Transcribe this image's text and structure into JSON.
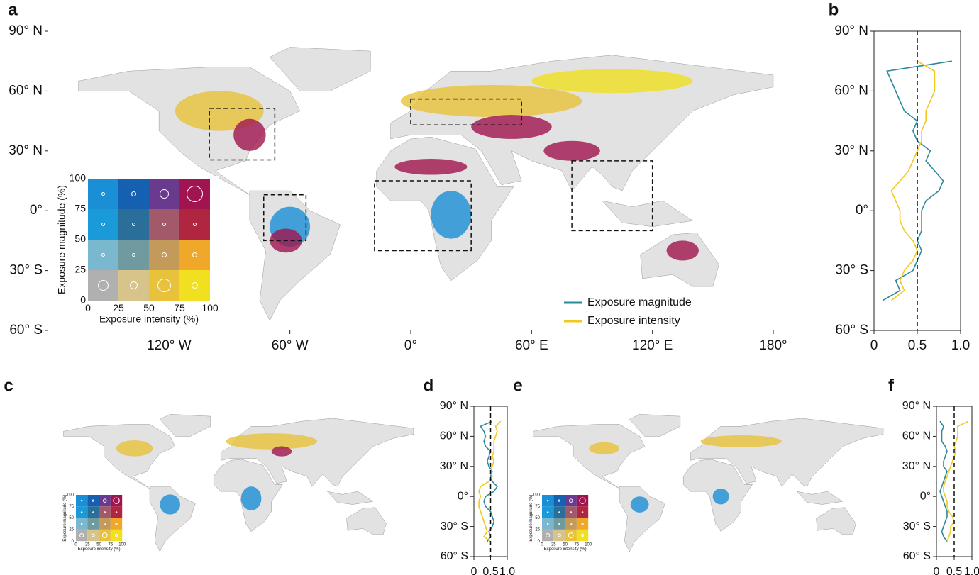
{
  "chart_data": [
    {
      "type": "map",
      "panel": "a",
      "xlim": [
        -180,
        180
      ],
      "ylim": [
        -60,
        90
      ],
      "xticks": [
        {
          "value": -120,
          "label": "120° W"
        },
        {
          "value": -60,
          "label": "60° W"
        },
        {
          "value": 0,
          "label": "0°"
        },
        {
          "value": 60,
          "label": "60° E"
        },
        {
          "value": 120,
          "label": "120° E"
        },
        {
          "value": 180,
          "label": "180°"
        }
      ],
      "yticks": [
        {
          "value": 90,
          "label": "90° N"
        },
        {
          "value": 60,
          "label": "60° N"
        },
        {
          "value": 30,
          "label": "30° N"
        },
        {
          "value": 0,
          "label": "0°"
        },
        {
          "value": -30,
          "label": "30° S"
        },
        {
          "value": -60,
          "label": "60° S"
        }
      ],
      "legend": {
        "x_label": "Exposure intensity (%)",
        "y_label": "Exposure magnitude (%)",
        "ticks": [
          0,
          25,
          50,
          75,
          100
        ],
        "colors": [
          [
            "#1a8fd6",
            "#1560b0",
            "#6a3a8e",
            "#a0154f"
          ],
          [
            "#1a9ad8",
            "#2a6e9a",
            "#a25a6a",
            "#b0253f"
          ],
          [
            "#7ab8d0",
            "#6e9aa0",
            "#c49a5a",
            "#f0a82a"
          ],
          [
            "#b0b0b0",
            "#d6c48a",
            "#e8c23a",
            "#f0e020"
          ]
        ]
      }
    },
    {
      "type": "line",
      "panel": "b",
      "xlim": [
        0,
        1
      ],
      "xticks": [
        0,
        0.5,
        {
          "value": 1,
          "label": "1.0"
        }
      ],
      "ylim": [
        -60,
        90
      ],
      "yticks": [
        {
          "value": 90,
          "label": "90° N"
        },
        {
          "value": 60,
          "label": "60° N"
        },
        {
          "value": 30,
          "label": "30° N"
        },
        {
          "value": 0,
          "label": "0°"
        },
        {
          "value": -30,
          "label": "30° S"
        },
        {
          "value": -60,
          "label": "60° S"
        }
      ],
      "refline": 0.5,
      "y": [
        -45,
        -40,
        -35,
        -30,
        -25,
        -20,
        -15,
        -10,
        -5,
        0,
        5,
        10,
        15,
        20,
        25,
        30,
        35,
        40,
        45,
        50,
        55,
        60,
        65,
        70,
        75
      ],
      "series": [
        {
          "name": "Exposure magnitude",
          "color": "#2b8a9b",
          "values": [
            0.1,
            0.3,
            0.25,
            0.45,
            0.5,
            0.55,
            0.5,
            0.55,
            0.55,
            0.55,
            0.6,
            0.75,
            0.8,
            0.7,
            0.6,
            0.65,
            0.5,
            0.45,
            0.5,
            0.35,
            0.3,
            0.25,
            0.2,
            0.15,
            0.9
          ]
        },
        {
          "name": "Exposure intensity",
          "color": "#f2c81e",
          "values": [
            0.2,
            0.35,
            0.3,
            0.35,
            0.45,
            0.5,
            0.45,
            0.35,
            0.3,
            0.3,
            0.25,
            0.2,
            0.3,
            0.4,
            0.45,
            0.5,
            0.55,
            0.55,
            0.6,
            0.6,
            0.65,
            0.7,
            0.7,
            0.7,
            0.5
          ]
        }
      ]
    },
    {
      "type": "map",
      "panel": "c",
      "xlim": [
        -180,
        180
      ],
      "ylim": [
        -60,
        90
      ],
      "legend": {
        "x_label": "Exposure intensity (%)",
        "y_label": "Exposure magnitude (%)",
        "ticks": [
          0,
          25,
          50,
          75,
          100
        ],
        "colors": [
          [
            "#1a8fd6",
            "#1560b0",
            "#6a3a8e",
            "#a0154f"
          ],
          [
            "#1a9ad8",
            "#2a6e9a",
            "#a25a6a",
            "#b0253f"
          ],
          [
            "#7ab8d0",
            "#6e9aa0",
            "#c49a5a",
            "#f0a82a"
          ],
          [
            "#b0b0b0",
            "#d6c48a",
            "#e8c23a",
            "#f0e020"
          ]
        ]
      }
    },
    {
      "type": "line",
      "panel": "d",
      "xlim": [
        0,
        1
      ],
      "xticks": [
        0,
        0.5,
        {
          "value": 1,
          "label": "1.0"
        }
      ],
      "ylim": [
        -60,
        90
      ],
      "yticks": [
        {
          "value": 90,
          "label": "90° N"
        },
        {
          "value": 60,
          "label": "60° N"
        },
        {
          "value": 30,
          "label": "30° N"
        },
        {
          "value": 0,
          "label": "0°"
        },
        {
          "value": -30,
          "label": "30° S"
        },
        {
          "value": -60,
          "label": "60° S"
        }
      ],
      "refline": 0.5,
      "y": [
        -45,
        -40,
        -35,
        -30,
        -25,
        -20,
        -15,
        -10,
        -5,
        0,
        5,
        10,
        15,
        20,
        25,
        30,
        35,
        40,
        45,
        50,
        55,
        60,
        65,
        70,
        75
      ],
      "series": [
        {
          "color": "#2b8a9b",
          "values": [
            0.4,
            0.5,
            0.45,
            0.55,
            0.6,
            0.55,
            0.5,
            0.35,
            0.3,
            0.35,
            0.6,
            0.7,
            0.55,
            0.5,
            0.55,
            0.45,
            0.4,
            0.45,
            0.5,
            0.35,
            0.3,
            0.35,
            0.3,
            0.2,
            0.55
          ]
        },
        {
          "color": "#f2c81e",
          "values": [
            0.5,
            0.3,
            0.4,
            0.35,
            0.3,
            0.25,
            0.2,
            0.15,
            0.15,
            0.2,
            0.15,
            0.2,
            0.45,
            0.55,
            0.5,
            0.55,
            0.6,
            0.55,
            0.6,
            0.6,
            0.6,
            0.65,
            0.7,
            0.65,
            0.8
          ]
        }
      ]
    },
    {
      "type": "map",
      "panel": "e",
      "xlim": [
        -180,
        180
      ],
      "ylim": [
        -60,
        90
      ],
      "legend": {
        "x_label": "Exposure intensity (%)",
        "y_label": "Exposure magnitude (%)",
        "ticks": [
          0,
          25,
          50,
          75,
          100
        ],
        "colors": [
          [
            "#1a8fd6",
            "#1560b0",
            "#6a3a8e",
            "#a0154f"
          ],
          [
            "#1a9ad8",
            "#2a6e9a",
            "#a25a6a",
            "#b0253f"
          ],
          [
            "#7ab8d0",
            "#6e9aa0",
            "#c49a5a",
            "#f0a82a"
          ],
          [
            "#b0b0b0",
            "#d6c48a",
            "#e8c23a",
            "#f0e020"
          ]
        ]
      }
    },
    {
      "type": "line",
      "panel": "f",
      "xlim": [
        0,
        1
      ],
      "xticks": [
        0,
        0.5,
        {
          "value": 1,
          "label": "1.0"
        }
      ],
      "ylim": [
        -60,
        90
      ],
      "yticks": [
        {
          "value": 90,
          "label": "90° N"
        },
        {
          "value": 60,
          "label": "60° N"
        },
        {
          "value": 30,
          "label": "30° N"
        },
        {
          "value": 0,
          "label": "0°"
        },
        {
          "value": -30,
          "label": "30° S"
        },
        {
          "value": -60,
          "label": "60° S"
        }
      ],
      "refline": 0.5,
      "y": [
        -45,
        -40,
        -35,
        -30,
        -25,
        -20,
        -15,
        -10,
        -5,
        0,
        5,
        10,
        15,
        20,
        25,
        30,
        35,
        40,
        45,
        50,
        55,
        60,
        65,
        70,
        75
      ],
      "series": [
        {
          "color": "#2b8a9b",
          "values": [
            0.3,
            0.2,
            0.15,
            0.2,
            0.25,
            0.3,
            0.3,
            0.25,
            0.2,
            0.15,
            0.1,
            0.15,
            0.2,
            0.25,
            0.3,
            0.2,
            0.2,
            0.25,
            0.3,
            0.25,
            0.15,
            0.15,
            0.15,
            0.2,
            0.1
          ]
        },
        {
          "color": "#f2c81e",
          "values": [
            0.3,
            0.35,
            0.4,
            0.4,
            0.5,
            0.45,
            0.35,
            0.3,
            0.3,
            0.25,
            0.2,
            0.2,
            0.25,
            0.3,
            0.35,
            0.4,
            0.45,
            0.5,
            0.55,
            0.5,
            0.55,
            0.6,
            0.6,
            0.6,
            0.9
          ]
        }
      ]
    }
  ]
}
